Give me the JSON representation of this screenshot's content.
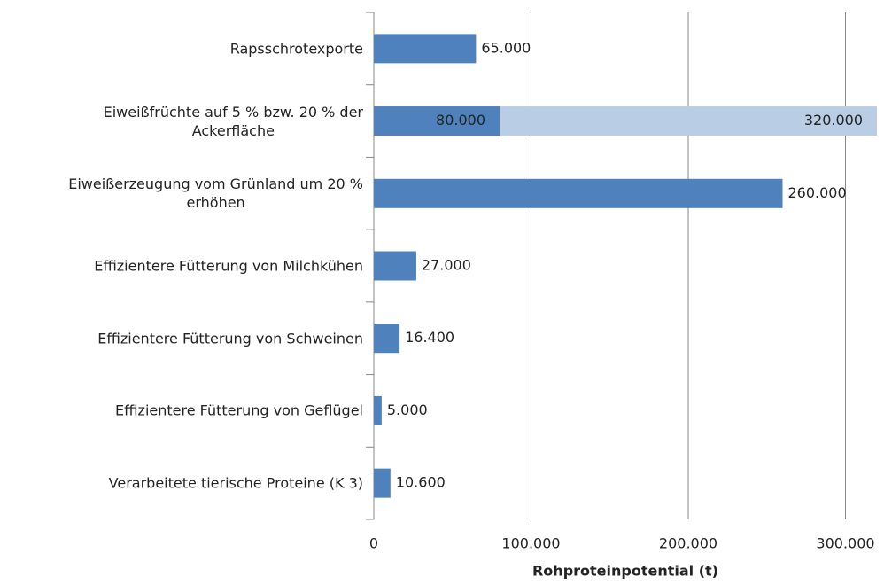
{
  "chart_data": {
    "type": "barh",
    "categories": [
      "Rapsschrotexporte",
      "Eiweißfrüchte auf 5 % bzw. 20 % der\nAckerfläche",
      "Eiweißerzeugung vom Grünland um 20 %\nerhöhen",
      "Effizientere Fütterung von Milchkühen",
      "Effizientere Fütterung von Schweinen",
      "Effizientere Fütterung von Geflügel",
      "Verarbeitete tierische Proteine (K 3)"
    ],
    "series": [
      {
        "color": "#b9cde5",
        "values": [
          null,
          320000,
          null,
          null,
          null,
          null,
          null
        ],
        "value_labels": [
          null,
          "320.000",
          null,
          null,
          null,
          null,
          null
        ]
      },
      {
        "color": "#4f81bd",
        "values": [
          65000,
          80000,
          260000,
          27000,
          16400,
          5000,
          10600
        ],
        "value_labels": [
          "65.000",
          "80.000",
          "260.000",
          "27.000",
          "16.400",
          "5.000",
          "10.600"
        ]
      }
    ],
    "xlabel": "Rohproteinpotential (t)",
    "xlim": [
      0,
      320000
    ],
    "xticks": [
      0,
      {
        "value": 100000,
        "label": "100.000"
      },
      {
        "value": 200000,
        "label": "200.000"
      },
      {
        "value": 300000,
        "label": "300.000"
      }
    ],
    "grid": true
  }
}
